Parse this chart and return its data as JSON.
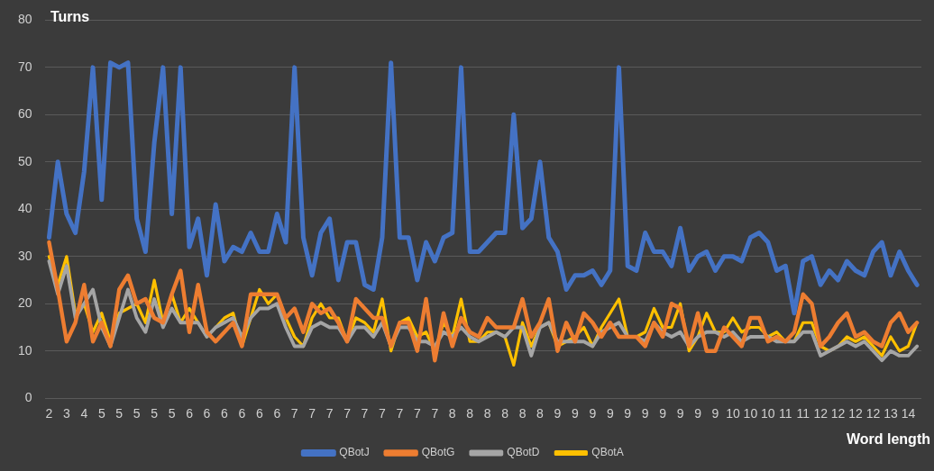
{
  "chart_data": {
    "type": "line",
    "xlabel": "Word length",
    "ylabel": "Turns",
    "categories": [
      "2",
      null,
      "3",
      null,
      "4",
      null,
      "5",
      null,
      "5",
      null,
      "5",
      null,
      "5",
      null,
      "5",
      null,
      "6",
      null,
      "6",
      null,
      "6",
      null,
      "6",
      null,
      "6",
      null,
      "6",
      null,
      "7",
      null,
      "7",
      null,
      "7",
      null,
      "7",
      null,
      "7",
      null,
      "7",
      null,
      "7",
      null,
      "7",
      null,
      "7",
      null,
      "8",
      null,
      "8",
      null,
      "8",
      null,
      "8",
      null,
      "8",
      null,
      "8",
      null,
      "9",
      null,
      "9",
      null,
      "9",
      null,
      "9",
      null,
      "9",
      null,
      "9",
      null,
      "9",
      null,
      "9",
      null,
      "9",
      null,
      "9",
      null,
      "10",
      null,
      "10",
      null,
      "10",
      null,
      "11",
      null,
      "11",
      null,
      "12",
      null,
      "12",
      null,
      "12",
      null,
      "12",
      null,
      "13",
      null,
      "14",
      null
    ],
    "series": [
      {
        "name": "QBotJ",
        "color": "#4472c4",
        "values": [
          34,
          50,
          39,
          35,
          48,
          70,
          42,
          71,
          70,
          71,
          38,
          31,
          54,
          70,
          39,
          70,
          32,
          38,
          26,
          41,
          29,
          32,
          31,
          35,
          31,
          31,
          39,
          33,
          70,
          34,
          26,
          35,
          38,
          25,
          33,
          33,
          24,
          23,
          34,
          71,
          34,
          34,
          25,
          33,
          29,
          34,
          35,
          70,
          31,
          31,
          33,
          35,
          35,
          60,
          36,
          38,
          50,
          34,
          31,
          23,
          26,
          26,
          27,
          24,
          27,
          70,
          28,
          27,
          35,
          31,
          31,
          28,
          36,
          27,
          30,
          31,
          27,
          30,
          30,
          29,
          34,
          35,
          33,
          27,
          28,
          18,
          29,
          30,
          24,
          27,
          25,
          29,
          27,
          26,
          31,
          33,
          26,
          31,
          27,
          24
        ]
      },
      {
        "name": "QBotG",
        "color": "#ed7d31",
        "values": [
          33,
          23,
          12,
          16,
          24,
          12,
          16,
          11,
          23,
          26,
          20,
          21,
          17,
          16,
          22,
          27,
          14,
          24,
          14,
          12,
          14,
          16,
          11,
          22,
          22,
          22,
          22,
          17,
          19,
          14,
          20,
          18,
          19,
          16,
          12,
          21,
          19,
          17,
          17,
          11,
          16,
          16,
          10,
          21,
          8,
          18,
          11,
          17,
          14,
          13,
          17,
          15,
          15,
          15,
          21,
          13,
          16,
          21,
          10,
          16,
          12,
          18,
          16,
          13,
          16,
          13,
          13,
          13,
          11,
          16,
          13,
          20,
          19,
          11,
          18,
          10,
          10,
          15,
          13,
          11,
          17,
          17,
          12,
          13,
          12,
          14,
          22,
          20,
          11,
          13,
          16,
          18,
          13,
          14,
          12,
          11,
          16,
          18,
          14,
          16
        ]
      },
      {
        "name": "QBotD",
        "color": "#a5a5a5",
        "values": [
          29,
          22,
          28,
          17,
          20,
          23,
          15,
          11,
          17,
          23,
          17,
          14,
          21,
          15,
          19,
          16,
          16,
          16,
          13,
          15,
          16,
          17,
          13,
          17,
          19,
          19,
          20,
          15,
          11,
          11,
          15,
          16,
          15,
          15,
          12,
          15,
          15,
          13,
          16,
          11,
          15,
          15,
          12,
          12,
          11,
          14,
          13,
          15,
          13,
          12,
          13,
          14,
          13,
          15,
          15,
          9,
          15,
          16,
          12,
          12,
          12,
          12,
          11,
          14,
          15,
          16,
          13,
          13,
          12,
          16,
          14,
          13,
          14,
          11,
          13,
          14,
          14,
          13,
          14,
          12,
          13,
          13,
          13,
          12,
          12,
          12,
          14,
          14,
          9,
          10,
          11,
          12,
          11,
          12,
          10,
          8,
          10,
          9,
          9,
          11
        ]
      },
      {
        "name": "QBotA",
        "color": "#ffc000",
        "values": [
          30,
          24,
          30,
          18,
          20,
          14,
          18,
          12,
          18,
          19,
          20,
          16,
          25,
          16,
          22,
          16,
          19,
          16,
          13,
          15,
          17,
          18,
          11,
          17,
          23,
          20,
          22,
          17,
          13,
          11,
          17,
          20,
          17,
          17,
          12,
          17,
          16,
          14,
          21,
          10,
          16,
          17,
          13,
          14,
          10,
          16,
          13,
          21,
          12,
          12,
          14,
          14,
          13,
          7,
          16,
          11,
          15,
          16,
          11,
          12,
          13,
          15,
          11,
          15,
          18,
          21,
          13,
          13,
          14,
          19,
          15,
          15,
          20,
          10,
          13,
          18,
          14,
          14,
          17,
          14,
          15,
          15,
          13,
          14,
          12,
          12,
          16,
          16,
          11,
          10,
          11,
          13,
          12,
          13,
          11,
          9,
          13,
          10,
          11,
          16
        ]
      }
    ],
    "ylim": [
      0,
      80
    ],
    "yticks": [
      0,
      10,
      20,
      30,
      40,
      50,
      60,
      70,
      80
    ],
    "grid": "y",
    "legend": "bottom",
    "marker": "none",
    "line_style": "solid"
  }
}
